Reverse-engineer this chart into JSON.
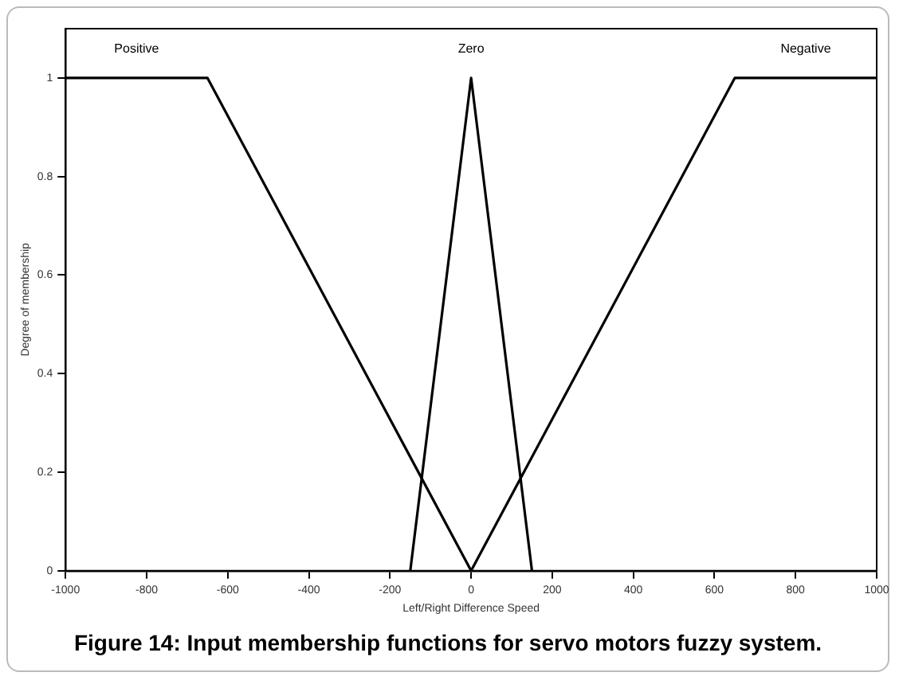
{
  "chart_data": {
    "type": "line",
    "title": "Figure 14: Input membership functions for servo motors fuzzy system.",
    "xlabel": "Left/Right Difference Speed",
    "ylabel": "Degree of membership",
    "series": [
      {
        "name": "Positive",
        "color": "#000000",
        "x": [
          -1000,
          -650,
          0
        ],
        "values": [
          1,
          1,
          0
        ]
      },
      {
        "name": "Zero",
        "color": "#000000",
        "x": [
          -150,
          0,
          150
        ],
        "values": [
          0,
          1,
          0
        ]
      },
      {
        "name": "Negative",
        "color": "#000000",
        "x": [
          0,
          650,
          1000
        ],
        "values": [
          0,
          1,
          1
        ]
      }
    ],
    "xlim": [
      -1000,
      1000
    ],
    "xticks": [
      -1000,
      -800,
      -600,
      -400,
      -200,
      0,
      200,
      400,
      600,
      800,
      1000
    ],
    "ylim": [
      0,
      1.1
    ],
    "yticks": [
      0,
      0.2,
      0.4,
      0.6,
      0.8,
      1
    ],
    "grid": false,
    "legend": false,
    "marker": "none",
    "line_style": "solid"
  }
}
